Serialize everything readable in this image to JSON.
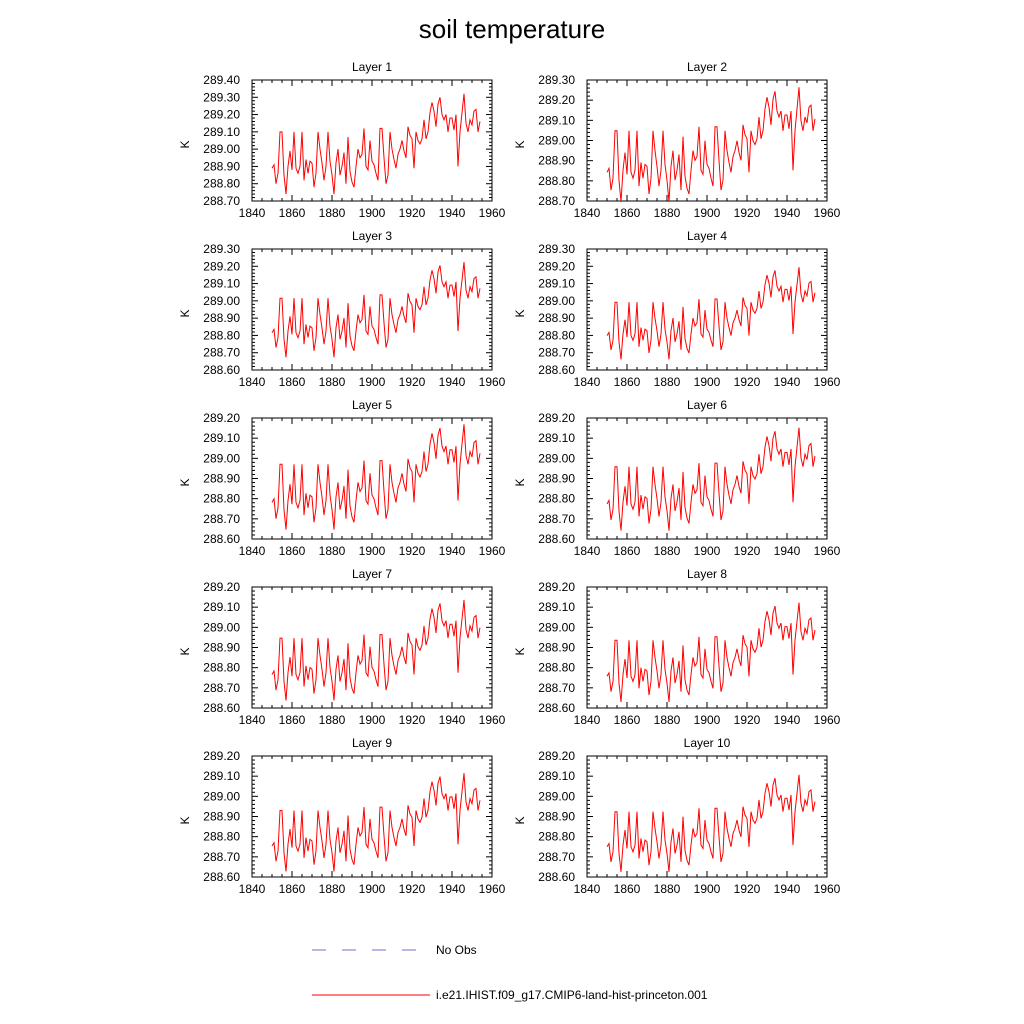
{
  "title": "soil temperature",
  "legend": [
    {
      "label": "No Obs",
      "color": "#6f6fd0",
      "dash": "dashed"
    },
    {
      "label": "i.e21.IHIST.f09_g17.CMIP6-land-hist-princeton.001",
      "color": "#ff0000",
      "dash": "solid"
    }
  ],
  "chart_data": [
    {
      "type": "line",
      "title": "Layer 1",
      "ylabel": "K",
      "xlim": [
        1840,
        1960
      ],
      "ylim": [
        288.7,
        289.4
      ],
      "xticks": [
        "1840",
        "1860",
        "1880",
        "1900",
        "1920",
        "1940",
        "1960"
      ],
      "yticks": [
        "288.70",
        "288.80",
        "288.90",
        "289.00",
        "289.10",
        "289.20",
        "289.30",
        "289.40"
      ],
      "grid": false,
      "series": [
        {
          "color": "#ff0000",
          "x_start": 1850,
          "x_end": 1954
        }
      ]
    },
    {
      "type": "line",
      "title": "Layer 2",
      "ylabel": "K",
      "xlim": [
        1840,
        1960
      ],
      "ylim": [
        288.7,
        289.3
      ],
      "xticks": [
        "1840",
        "1860",
        "1880",
        "1900",
        "1920",
        "1940",
        "1960"
      ],
      "yticks": [
        "288.70",
        "288.80",
        "288.90",
        "289.00",
        "289.10",
        "289.20",
        "289.30"
      ],
      "grid": false,
      "series": [
        {
          "color": "#ff0000",
          "x_start": 1850,
          "x_end": 1954
        }
      ]
    },
    {
      "type": "line",
      "title": "Layer 3",
      "ylabel": "K",
      "xlim": [
        1840,
        1960
      ],
      "ylim": [
        288.6,
        289.3
      ],
      "xticks": [
        "1840",
        "1860",
        "1880",
        "1900",
        "1920",
        "1940",
        "1960"
      ],
      "yticks": [
        "288.60",
        "288.70",
        "288.80",
        "288.90",
        "289.00",
        "289.10",
        "289.20",
        "289.30"
      ],
      "grid": false,
      "series": [
        {
          "color": "#ff0000",
          "x_start": 1850,
          "x_end": 1954
        }
      ]
    },
    {
      "type": "line",
      "title": "Layer 4",
      "ylabel": "K",
      "xlim": [
        1840,
        1960
      ],
      "ylim": [
        288.6,
        289.3
      ],
      "xticks": [
        "1840",
        "1860",
        "1880",
        "1900",
        "1920",
        "1940",
        "1960"
      ],
      "yticks": [
        "288.60",
        "288.70",
        "288.80",
        "288.90",
        "289.00",
        "289.10",
        "289.20",
        "289.30"
      ],
      "grid": false,
      "series": [
        {
          "color": "#ff0000",
          "x_start": 1850,
          "x_end": 1954
        }
      ]
    },
    {
      "type": "line",
      "title": "Layer 5",
      "ylabel": "K",
      "xlim": [
        1840,
        1960
      ],
      "ylim": [
        288.6,
        289.2
      ],
      "xticks": [
        "1840",
        "1860",
        "1880",
        "1900",
        "1920",
        "1940",
        "1960"
      ],
      "yticks": [
        "288.60",
        "288.70",
        "288.80",
        "288.90",
        "289.00",
        "289.10",
        "289.20"
      ],
      "grid": false,
      "series": [
        {
          "color": "#ff0000",
          "x_start": 1850,
          "x_end": 1954
        }
      ]
    },
    {
      "type": "line",
      "title": "Layer 6",
      "ylabel": "K",
      "xlim": [
        1840,
        1960
      ],
      "ylim": [
        288.6,
        289.2
      ],
      "xticks": [
        "1840",
        "1860",
        "1880",
        "1900",
        "1920",
        "1940",
        "1960"
      ],
      "yticks": [
        "288.60",
        "288.70",
        "288.80",
        "288.90",
        "289.00",
        "289.10",
        "289.20"
      ],
      "grid": false,
      "series": [
        {
          "color": "#ff0000",
          "x_start": 1850,
          "x_end": 1954
        }
      ]
    },
    {
      "type": "line",
      "title": "Layer 7",
      "ylabel": "K",
      "xlim": [
        1840,
        1960
      ],
      "ylim": [
        288.6,
        289.2
      ],
      "xticks": [
        "1840",
        "1860",
        "1880",
        "1900",
        "1920",
        "1940",
        "1960"
      ],
      "yticks": [
        "288.60",
        "288.70",
        "288.80",
        "288.90",
        "289.00",
        "289.10",
        "289.20"
      ],
      "grid": false,
      "series": [
        {
          "color": "#ff0000",
          "x_start": 1850,
          "x_end": 1954
        }
      ]
    },
    {
      "type": "line",
      "title": "Layer 8",
      "ylabel": "K",
      "xlim": [
        1840,
        1960
      ],
      "ylim": [
        288.6,
        289.2
      ],
      "xticks": [
        "1840",
        "1860",
        "1880",
        "1900",
        "1920",
        "1940",
        "1960"
      ],
      "yticks": [
        "288.60",
        "288.70",
        "288.80",
        "288.90",
        "289.00",
        "289.10",
        "289.20"
      ],
      "grid": false,
      "series": [
        {
          "color": "#ff0000",
          "x_start": 1850,
          "x_end": 1954
        }
      ]
    },
    {
      "type": "line",
      "title": "Layer 9",
      "ylabel": "K",
      "xlim": [
        1840,
        1960
      ],
      "ylim": [
        288.6,
        289.2
      ],
      "xticks": [
        "1840",
        "1860",
        "1880",
        "1900",
        "1920",
        "1940",
        "1960"
      ],
      "yticks": [
        "288.60",
        "288.70",
        "288.80",
        "288.90",
        "289.00",
        "289.10",
        "289.20"
      ],
      "grid": false,
      "series": [
        {
          "color": "#ff0000",
          "x_start": 1850,
          "x_end": 1954
        }
      ]
    },
    {
      "type": "line",
      "title": "Layer 10",
      "ylabel": "K",
      "xlim": [
        1840,
        1960
      ],
      "ylim": [
        288.6,
        289.2
      ],
      "xticks": [
        "1840",
        "1860",
        "1880",
        "1900",
        "1920",
        "1940",
        "1960"
      ],
      "yticks": [
        "288.60",
        "288.70",
        "288.80",
        "288.90",
        "289.00",
        "289.10",
        "289.20"
      ],
      "grid": false,
      "series": [
        {
          "color": "#ff0000",
          "x_start": 1850,
          "x_end": 1954
        }
      ]
    }
  ],
  "base_series": {
    "x": [
      1850,
      1851,
      1852,
      1853,
      1854,
      1855,
      1856,
      1857,
      1858,
      1859,
      1860,
      1861,
      1862,
      1863,
      1864,
      1865,
      1866,
      1867,
      1868,
      1869,
      1870,
      1871,
      1872,
      1873,
      1874,
      1875,
      1876,
      1877,
      1878,
      1879,
      1880,
      1881,
      1882,
      1883,
      1884,
      1885,
      1886,
      1887,
      1888,
      1889,
      1890,
      1891,
      1892,
      1893,
      1894,
      1895,
      1896,
      1897,
      1898,
      1899,
      1900,
      1901,
      1902,
      1903,
      1904,
      1905,
      1906,
      1907,
      1908,
      1909,
      1910,
      1911,
      1912,
      1913,
      1914,
      1915,
      1916,
      1917,
      1918,
      1919,
      1920,
      1921,
      1922,
      1923,
      1924,
      1925,
      1926,
      1927,
      1928,
      1929,
      1930,
      1931,
      1932,
      1933,
      1934,
      1935,
      1936,
      1937,
      1938,
      1939,
      1940,
      1941,
      1942,
      1943,
      1944,
      1945,
      1946,
      1947,
      1948,
      1949,
      1950,
      1951,
      1952,
      1953,
      1954
    ],
    "layer1": [
      288.89,
      288.91,
      288.8,
      288.86,
      289.1,
      289.1,
      288.85,
      288.74,
      288.9,
      288.99,
      288.88,
      289.1,
      288.89,
      288.86,
      288.9,
      289.1,
      288.82,
      288.94,
      288.86,
      288.93,
      288.92,
      288.78,
      288.86,
      289.1,
      289.0,
      288.92,
      288.82,
      288.9,
      289.1,
      288.93,
      288.85,
      288.74,
      288.92,
      289.0,
      288.85,
      288.9,
      288.98,
      288.8,
      289.07,
      288.87,
      288.81,
      288.78,
      288.9,
      289.0,
      288.95,
      288.97,
      289.12,
      288.9,
      288.88,
      289.05,
      288.93,
      288.91,
      288.86,
      288.82,
      289.12,
      289.12,
      288.95,
      288.8,
      288.85,
      289.1,
      289.0,
      288.94,
      288.89,
      288.97,
      289.0,
      289.05,
      288.99,
      288.95,
      289.13,
      289.08,
      289.06,
      288.89,
      289.1,
      289.05,
      289.03,
      289.06,
      289.17,
      289.06,
      289.1,
      289.21,
      289.27,
      289.22,
      289.13,
      289.26,
      289.3,
      289.2,
      289.17,
      289.2,
      289.1,
      289.18,
      289.18,
      289.11,
      289.2,
      288.9,
      289.1,
      289.21,
      289.32,
      289.15,
      289.1,
      289.17,
      289.14,
      289.22,
      289.23,
      289.1,
      289.16
    ]
  }
}
